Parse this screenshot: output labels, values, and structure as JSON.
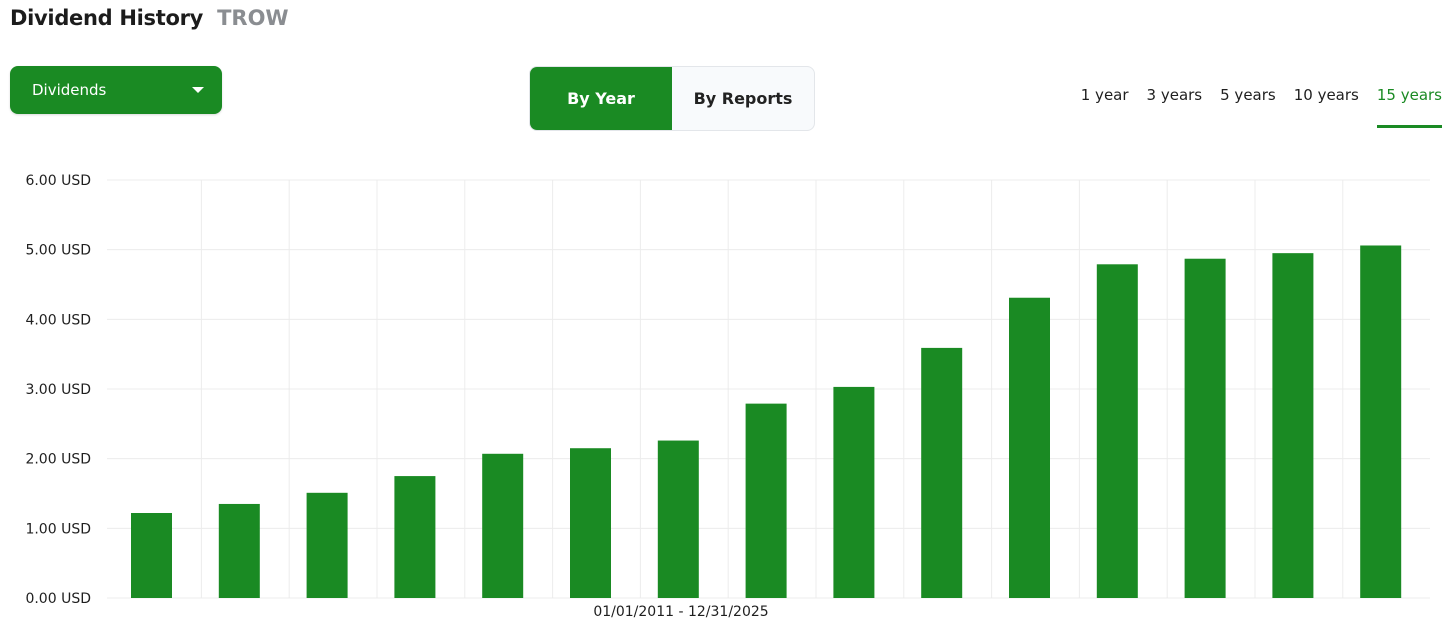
{
  "header": {
    "title": "Dividend History",
    "ticker": "TROW"
  },
  "dropdown": {
    "selected": "Dividends",
    "icon": "caret-down-icon"
  },
  "view_toggle": {
    "options": [
      "By Year",
      "By Reports"
    ],
    "active": "By Year"
  },
  "range_tabs": {
    "options": [
      "1 year",
      "3 years",
      "5 years",
      "10 years",
      "15 years"
    ],
    "active": "15 years"
  },
  "colors": {
    "accent": "#1a8a23",
    "grid": "#ececec"
  },
  "chart_data": {
    "type": "bar",
    "x_caption": "01/01/2011 - 12/31/2025",
    "y_tick_labels": [
      "0.00 USD",
      "1.00 USD",
      "2.00 USD",
      "3.00 USD",
      "4.00 USD",
      "5.00 USD",
      "6.00 USD"
    ],
    "ylim": [
      0,
      6
    ],
    "grid": true,
    "values": [
      1.22,
      1.35,
      1.51,
      1.75,
      2.07,
      2.15,
      2.26,
      2.79,
      3.03,
      3.59,
      4.31,
      4.79,
      4.87,
      4.95,
      5.06
    ]
  }
}
